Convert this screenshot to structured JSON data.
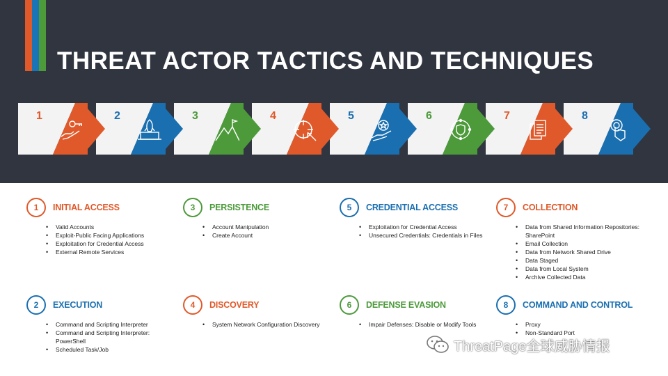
{
  "header": {
    "title": "THREAT ACTOR TACTICS AND TECHNIQUES",
    "stripe_colors": [
      "#e0592a",
      "#1b74b5",
      "#4c9a3a"
    ]
  },
  "colors": {
    "orange": "#e0592a",
    "blue": "#1a6fb0",
    "green": "#4c9a3a",
    "banner": "#303540",
    "panel": "#f3f3f3"
  },
  "steps": [
    {
      "num": "1",
      "color": "#e0592a",
      "icon": "hand-key-icon"
    },
    {
      "num": "2",
      "color": "#1a6fb0",
      "icon": "rocket-laptop-icon"
    },
    {
      "num": "3",
      "color": "#4c9a3a",
      "icon": "mountain-flag-icon"
    },
    {
      "num": "4",
      "color": "#e0592a",
      "icon": "target-cursor-icon"
    },
    {
      "num": "5",
      "color": "#1a6fb0",
      "icon": "hand-badge-icon"
    },
    {
      "num": "6",
      "color": "#4c9a3a",
      "icon": "shield-network-icon"
    },
    {
      "num": "7",
      "color": "#e0592a",
      "icon": "documents-icon"
    },
    {
      "num": "8",
      "color": "#1a6fb0",
      "icon": "touch-finger-icon"
    }
  ],
  "categories": [
    {
      "num": "1",
      "name": "INITIAL ACCESS",
      "color": "#e0592a",
      "items": [
        "Valid Accounts",
        "Exploit-Public Facing Applications",
        "Exploitation for Credential Access",
        "External Remote Services"
      ]
    },
    {
      "num": "3",
      "name": "PERSISTENCE",
      "color": "#4c9a3a",
      "items": [
        "Account Manipulation",
        "Create Account"
      ]
    },
    {
      "num": "5",
      "name": "CREDENTIAL ACCESS",
      "color": "#1a6fb0",
      "items": [
        "Exploitation for Credential Access",
        "Unsecured Credentials: Credentials in Files"
      ]
    },
    {
      "num": "7",
      "name": "COLLECTION",
      "color": "#e0592a",
      "items": [
        "Data from Shared Information Repositories: SharePoint",
        "Email Collection",
        "Data from Network Shared Drive",
        "Data Staged",
        "Data from Local System",
        "Archive Collected Data"
      ]
    },
    {
      "num": "2",
      "name": "EXECUTION",
      "color": "#1a6fb0",
      "items": [
        "Command and Scripting Interpreter",
        "Command and Scripting Interpreter: PowerShell",
        "Scheduled Task/Job"
      ]
    },
    {
      "num": "4",
      "name": "DISCOVERY",
      "color": "#e0592a",
      "items": [
        "System Network Configuration Discovery"
      ]
    },
    {
      "num": "6",
      "name": "DEFENSE EVASION",
      "color": "#4c9a3a",
      "items": [
        "Impair Defenses: Disable or Modify Tools"
      ]
    },
    {
      "num": "8",
      "name": "COMMAND AND CONTROL",
      "color": "#1a6fb0",
      "items": [
        "Proxy",
        "Non-Standard Port"
      ]
    }
  ],
  "watermark": {
    "text": "ThreatPage全球威胁情报",
    "icon": "wechat-icon"
  }
}
